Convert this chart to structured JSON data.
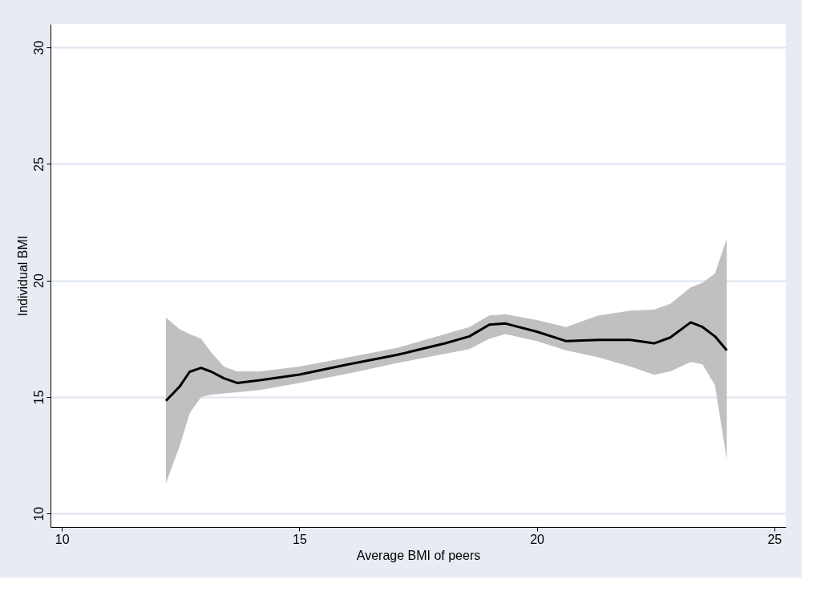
{
  "chart_data": {
    "type": "line",
    "xlabel": "Average BMI of peers",
    "ylabel": "Individual BMI",
    "x": [
      12.19,
      12.48,
      12.69,
      12.93,
      13.15,
      13.41,
      13.69,
      14.17,
      15.0,
      16.03,
      17.05,
      18.07,
      18.58,
      19.0,
      19.34,
      20.0,
      20.61,
      21.3,
      21.97,
      22.47,
      22.81,
      23.24,
      23.49,
      23.75,
      24.0
    ],
    "series": [
      {
        "color": "#000000",
        "values": [
          14.83,
          15.45,
          16.08,
          16.25,
          16.08,
          15.8,
          15.6,
          15.72,
          15.96,
          16.4,
          16.8,
          17.3,
          17.6,
          18.1,
          18.15,
          17.8,
          17.4,
          17.45,
          17.45,
          17.3,
          17.55,
          18.2,
          18.0,
          17.6,
          17.0
        ],
        "upper": [
          18.4,
          17.9,
          17.7,
          17.5,
          16.9,
          16.3,
          16.1,
          16.1,
          16.3,
          16.7,
          17.1,
          17.7,
          18.0,
          18.5,
          18.55,
          18.3,
          18.0,
          18.5,
          18.7,
          18.75,
          19.0,
          19.7,
          19.9,
          20.3,
          21.8
        ],
        "lower": [
          11.3,
          12.9,
          14.3,
          15.0,
          15.1,
          15.15,
          15.2,
          15.3,
          15.6,
          16.0,
          16.45,
          16.85,
          17.05,
          17.5,
          17.7,
          17.4,
          17.0,
          16.7,
          16.3,
          15.95,
          16.1,
          16.5,
          16.4,
          15.5,
          12.3
        ]
      }
    ],
    "xlim": [
      9.76,
      25.24
    ],
    "ylim": [
      9.42,
      31.0
    ],
    "xticks": [
      10,
      15,
      20,
      25
    ],
    "yticks": [
      10,
      15,
      20,
      25,
      30
    ],
    "grid": "y",
    "marker": "none",
    "line_style": "solid"
  }
}
